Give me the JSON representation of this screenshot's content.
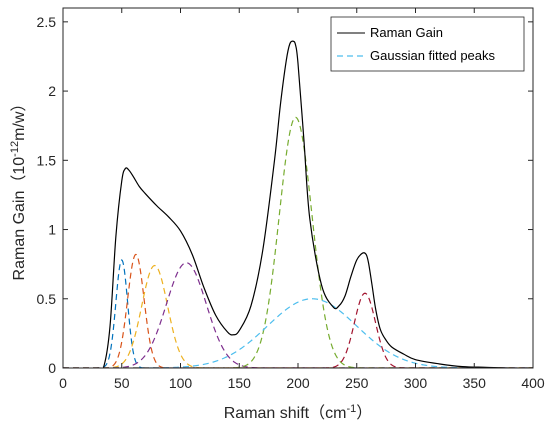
{
  "chart_data": {
    "type": "line",
    "xlabel": "Raman shift（cm",
    "xlabel_sup": "-1",
    "xlabel_end": "）",
    "ylabel": "Raman Gain（",
    "ylabel_mid": "10",
    "ylabel_sup": "-12",
    "ylabel_end": "m/w）",
    "xlim": [
      0,
      400
    ],
    "ylim": [
      0,
      2.6
    ],
    "xticks": [
      0,
      50,
      100,
      150,
      200,
      250,
      300,
      350,
      400
    ],
    "yticks": [
      0,
      0.5,
      1,
      1.5,
      2,
      2.5
    ],
    "xtick_labels": [
      "0",
      "50",
      "100",
      "150",
      "200",
      "250",
      "300",
      "350",
      "400"
    ],
    "ytick_labels": [
      "0",
      "0.5",
      "1",
      "1.5",
      "2",
      "2.5"
    ],
    "grid": false,
    "legend_position": "top-right",
    "legend": [
      {
        "label": "Raman Gain",
        "color": "#000000",
        "style": "solid"
      },
      {
        "label": "Gaussian fitted peaks",
        "color": "#4DBEEE",
        "style": "dashed"
      }
    ],
    "raman_gain": {
      "name": "Raman Gain",
      "color": "#000000",
      "x": [
        0,
        30,
        35,
        40,
        45,
        50,
        53,
        56,
        60,
        65,
        70,
        80,
        90,
        100,
        110,
        120,
        130,
        140,
        145,
        150,
        160,
        170,
        180,
        185,
        190,
        193,
        196,
        198,
        200,
        205,
        210,
        220,
        230,
        235,
        240,
        245,
        250,
        255,
        258,
        260,
        263,
        266,
        270,
        275,
        280,
        290,
        300,
        320,
        340,
        360,
        380,
        400
      ],
      "y": [
        0,
        0,
        0.02,
        0.3,
        0.95,
        1.35,
        1.44,
        1.43,
        1.38,
        1.31,
        1.26,
        1.17,
        1.09,
        0.99,
        0.82,
        0.58,
        0.38,
        0.26,
        0.24,
        0.27,
        0.45,
        0.85,
        1.5,
        1.9,
        2.22,
        2.34,
        2.36,
        2.33,
        2.2,
        1.65,
        1.08,
        0.6,
        0.44,
        0.45,
        0.52,
        0.66,
        0.78,
        0.83,
        0.82,
        0.76,
        0.6,
        0.43,
        0.28,
        0.2,
        0.15,
        0.1,
        0.06,
        0.03,
        0.01,
        0.005,
        0,
        0
      ]
    },
    "gaussian_peaks": [
      {
        "center": 50,
        "amplitude": 0.78,
        "width": 5,
        "color": "#0072BD"
      },
      {
        "center": 62,
        "amplitude": 0.82,
        "width": 7,
        "color": "#D95319"
      },
      {
        "center": 78,
        "amplitude": 0.74,
        "width": 11,
        "color": "#EDB120"
      },
      {
        "center": 105,
        "amplitude": 0.76,
        "width": 17,
        "color": "#7E2F8E"
      },
      {
        "center": 198,
        "amplitude": 1.81,
        "width": 14,
        "color": "#77AC30"
      },
      {
        "center": 212,
        "amplitude": 0.5,
        "width": 38,
        "color": "#4DBEEE"
      },
      {
        "center": 257,
        "amplitude": 0.54,
        "width": 9,
        "color": "#A2142F"
      }
    ]
  }
}
